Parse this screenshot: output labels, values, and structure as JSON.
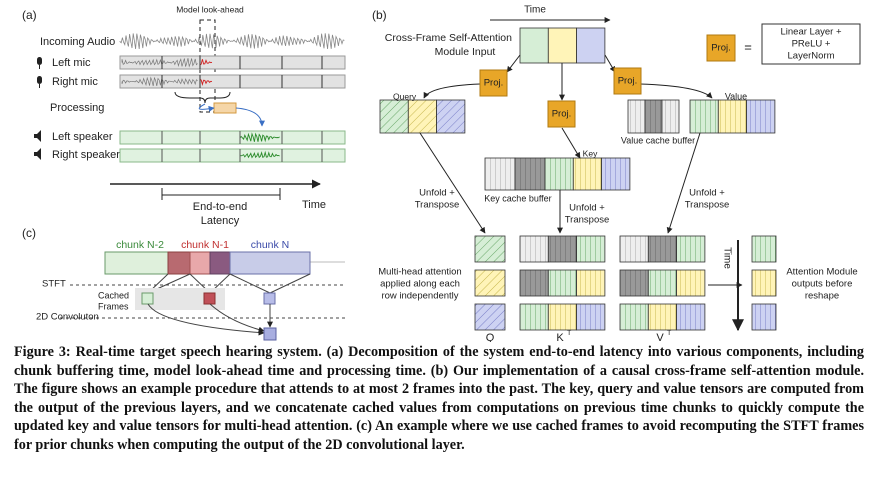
{
  "panel_a": {
    "label": "(a)",
    "lookahead": "Model look-ahead",
    "incoming": "Incoming Audio",
    "left_mic": "Left mic",
    "right_mic": "Right mic",
    "processing": "Processing",
    "left_speaker": "Left speaker",
    "right_speaker": "Right speaker",
    "latency": [
      "End-to-end",
      "Latency"
    ],
    "time": "Time"
  },
  "panel_b": {
    "label": "(b)",
    "time": "Time",
    "input": [
      "Cross-Frame Self-Attention",
      "Module Input"
    ],
    "proj": "Proj.",
    "equals": "=",
    "proj_def": [
      "Linear Layer +",
      "PReLU +",
      "LayerNorm"
    ],
    "query": "Query",
    "key": "Key",
    "value": "Value",
    "value_cache": "Value cache buffer",
    "key_cache": "Key cache buffer",
    "unfold": [
      "Unfold +",
      "Transpose"
    ],
    "mha": [
      "Multi-head attention",
      "applied along each",
      "row independently"
    ],
    "q": "Q",
    "k": "K",
    "v": "V",
    "transpose_sup": "T",
    "time_vertical": "Time",
    "outputs": [
      "Attention Module",
      "outputs before",
      "reshape"
    ]
  },
  "panel_c": {
    "label": "(c)",
    "chunks": [
      "chunk N-2",
      "chunk N-1",
      "chunk N"
    ],
    "stft": "STFT",
    "cached": [
      "Cached",
      "Frames"
    ],
    "conv": "2D Convoluton"
  },
  "caption": {
    "label": "Figure 3:",
    "text": "Real-time target speech hearing system. (a) Decomposition of the system end-to-end latency into various components, including chunk buffering time, model look-ahead time and processing time. (b) Our implementation of a causal cross-frame self-attention module. The figure shows an example procedure that attends to at most 2 frames into the past. The key, query and value tensors are computed from the output of the previous layers, and we concatenate cached values from computations on previous time chunks to quickly compute the updated key and value tensors for multi-head attention. (c) An example where we use cached frames to avoid recomputing the STFT frames for prior chunks when computing the output of the 2D convolutional layer."
  }
}
